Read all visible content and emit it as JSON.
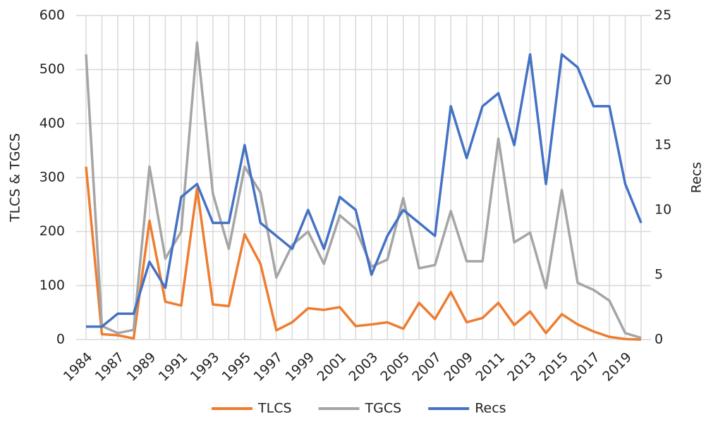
{
  "chart_data": {
    "type": "line",
    "categories": [
      "1984",
      null,
      "1987",
      null,
      "1989",
      null,
      "1991",
      null,
      "1993",
      null,
      "1995",
      null,
      "1997",
      null,
      "1999",
      null,
      "2001",
      null,
      "2003",
      null,
      "2005",
      null,
      "2007",
      null,
      "2009",
      null,
      "2011",
      null,
      "2013",
      null,
      "2015",
      null,
      "2017",
      null,
      "2019",
      null
    ],
    "series": [
      {
        "name": "TLCS",
        "color": "#ed7d31",
        "values": [
          320,
          10,
          8,
          2,
          220,
          70,
          63,
          280,
          65,
          62,
          195,
          140,
          17,
          32,
          58,
          55,
          60,
          25,
          28,
          32,
          20,
          68,
          38,
          88,
          32,
          40,
          68,
          27,
          52,
          12,
          47,
          28,
          15,
          5,
          1,
          0
        ]
      },
      {
        "name": "TGCS",
        "color": "#a5a5a5",
        "values": [
          528,
          25,
          12,
          18,
          320,
          150,
          200,
          550,
          270,
          168,
          320,
          272,
          115,
          175,
          200,
          140,
          230,
          205,
          135,
          148,
          262,
          132,
          138,
          238,
          145,
          145,
          372,
          180,
          198,
          95,
          277,
          105,
          92,
          72,
          12,
          3
        ]
      },
      {
        "name": "Recs",
        "color": "#4472c4",
        "axis": "y2",
        "values": [
          1,
          1,
          2,
          2,
          6,
          4,
          11,
          12,
          9,
          9,
          15,
          9,
          8,
          7,
          10,
          7,
          11,
          10,
          5,
          8,
          10,
          9,
          8,
          18,
          14,
          18,
          19,
          15,
          22,
          12,
          22,
          21,
          18,
          18,
          12,
          9
        ]
      }
    ],
    "y_label": "TLCS & TGCS",
    "y2_label": "Recs",
    "ylim": [
      0,
      600
    ],
    "yticks": [
      0,
      100,
      200,
      300,
      400,
      500,
      600
    ],
    "y2lim": [
      0,
      25
    ],
    "y2ticks": [
      0,
      5,
      10,
      15,
      20,
      25
    ],
    "grid": true,
    "legend": "bottom"
  }
}
